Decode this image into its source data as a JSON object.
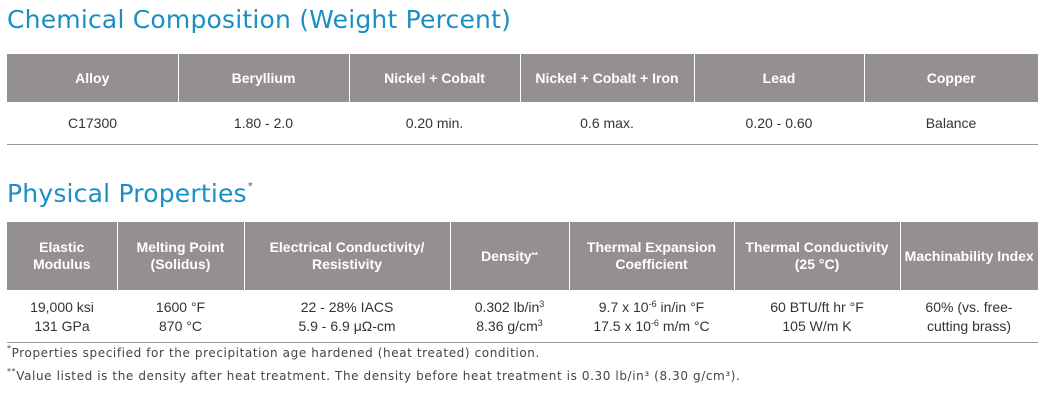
{
  "composition": {
    "title": "Chemical Composition (Weight Percent)",
    "headers": [
      "Alloy",
      "Beryllium",
      "Nickel + Cobalt",
      "Nickel + Cobalt + Iron",
      "Lead",
      "Copper"
    ],
    "row": [
      "C17300",
      "1.80 - 2.0",
      "0.20 min.",
      "0.6 max.",
      "0.20 - 0.60",
      "Balance"
    ]
  },
  "physical": {
    "title": "Physical Properties",
    "title_mark": "*",
    "headers": {
      "elastic": "Elastic Modulus",
      "melting": "Melting Point (Solidus)",
      "electrical": "Electrical Conductivity/ Resistivity",
      "density": "Density",
      "density_mark": "**",
      "thermal_exp": "Thermal Expansion Coefficient",
      "thermal_cond": "Thermal Conductivity (25 °C)",
      "machinability": "Machinability Index"
    },
    "values": {
      "elastic_1": "19,000 ksi",
      "elastic_2": "131 GPa",
      "melting_1": "1600 °F",
      "melting_2": "870 °C",
      "electrical_1": "22 - 28% IACS",
      "electrical_2": "5.9 - 6.9 μΩ-cm",
      "density_1_num": "0.302 lb/in",
      "density_1_exp": "3",
      "density_2_num": "8.36 g/cm",
      "density_2_exp": "3",
      "texp_1_a": "9.7 x 10",
      "texp_1_exp": "-6",
      "texp_1_b": " in/in °F",
      "texp_2_a": "17.5 x 10",
      "texp_2_exp": "-6",
      "texp_2_b": " m/m °C",
      "tcond_1": "60 BTU/ft hr °F",
      "tcond_2": "105 W/m K",
      "mach_1": "60% (vs. free-",
      "mach_2": "cutting brass)"
    }
  },
  "notes": {
    "note1_mark": "*",
    "note1": "Properties specified for the precipitation age hardened (heat treated) condition.",
    "note2_mark": "**",
    "note2": "Value listed is the density after heat treatment. The density before heat treatment is 0.30 lb/in³ (8.30 g/cm³)."
  }
}
